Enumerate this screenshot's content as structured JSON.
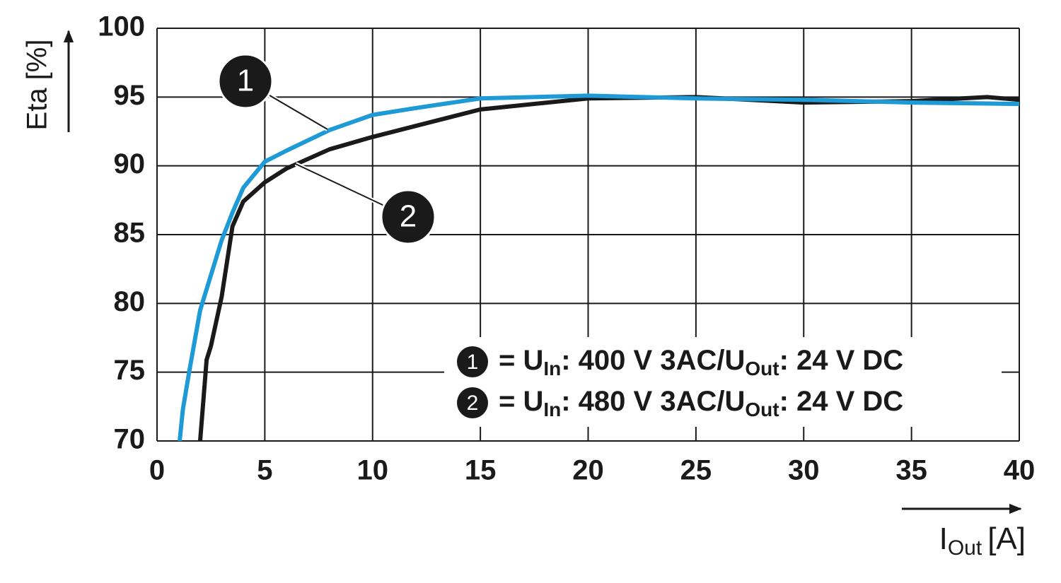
{
  "chart_data": {
    "type": "line",
    "ylabel": "Eta [%]",
    "xlabel": {
      "base": "I",
      "sub": "Out",
      "unit": "[A]"
    },
    "xlim": [
      0,
      40
    ],
    "xticks": [
      0,
      5,
      10,
      15,
      20,
      25,
      30,
      35,
      40
    ],
    "ylim": [
      70,
      100
    ],
    "yticks": [
      70,
      75,
      80,
      85,
      90,
      95,
      100
    ],
    "grid": true,
    "legend_position": "lower right",
    "series": [
      {
        "name": "1",
        "color": "#1e9ad6",
        "label_parts": [
          "= U",
          "In",
          ": 400 V 3AC/U",
          "Out",
          ": 24 V DC"
        ],
        "x": [
          1.05,
          1.2,
          1.5,
          2,
          3,
          3.5,
          4,
          5,
          6,
          8,
          10,
          12,
          15,
          20,
          25,
          30,
          35,
          40
        ],
        "values": [
          70,
          72.3,
          75.1,
          79.5,
          84.6,
          86.6,
          88.4,
          90.3,
          91.1,
          92.6,
          93.7,
          94.2,
          94.9,
          95.1,
          94.9,
          94.8,
          94.6,
          94.5
        ]
      },
      {
        "name": "2",
        "color": "#1a1a1a",
        "label_parts": [
          "= U",
          "In",
          ": 480 V 3AC/U",
          "Out",
          ": 24 V DC"
        ],
        "x": [
          2,
          2.3,
          2.5,
          3,
          3.5,
          4,
          5,
          6,
          8,
          10,
          12,
          15,
          20,
          25,
          30,
          35,
          38.5,
          40
        ],
        "values": [
          70,
          75.9,
          76.9,
          80.5,
          85.6,
          87.4,
          88.8,
          89.8,
          91.2,
          92.1,
          92.9,
          94.1,
          94.9,
          95,
          94.6,
          94.7,
          95,
          94.8
        ]
      }
    ]
  }
}
